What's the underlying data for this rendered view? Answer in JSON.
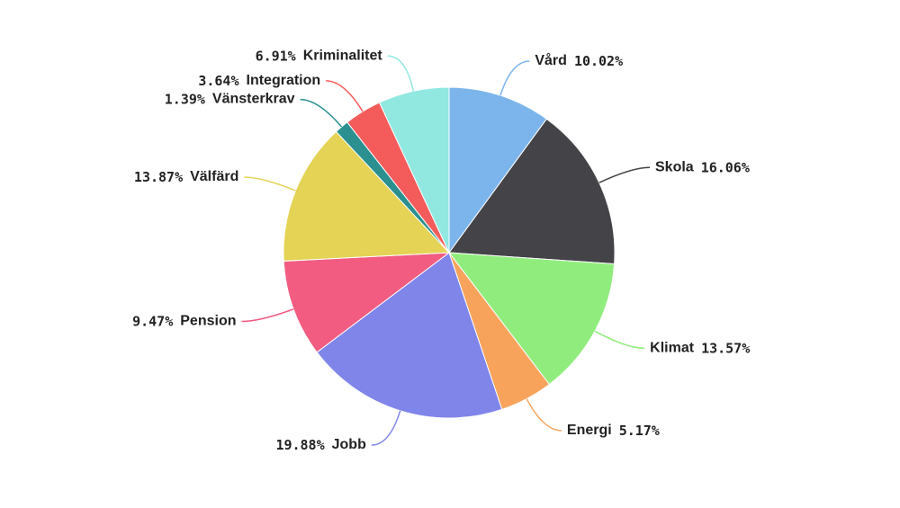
{
  "chart_data": {
    "type": "pie",
    "categories": [
      "Vård",
      "Skola",
      "Klimat",
      "Energi",
      "Jobb",
      "Pension",
      "Välfärd",
      "Vänsterkrav",
      "Integration",
      "Kriminalitet"
    ],
    "values": [
      10.02,
      16.06,
      13.57,
      5.17,
      19.88,
      9.47,
      13.87,
      1.39,
      3.64,
      6.91
    ],
    "value_labels": [
      "10.02%",
      "16.06%",
      "13.57%",
      "5.17%",
      "19.88%",
      "9.47%",
      "13.87%",
      "1.39%",
      "3.64%",
      "6.91%"
    ],
    "colors": [
      "#7cb5ec",
      "#434348",
      "#90ed7d",
      "#f7a35c",
      "#8085e9",
      "#f15c80",
      "#e4d354",
      "#2b908f",
      "#f45b5b",
      "#91e8e1"
    ]
  }
}
